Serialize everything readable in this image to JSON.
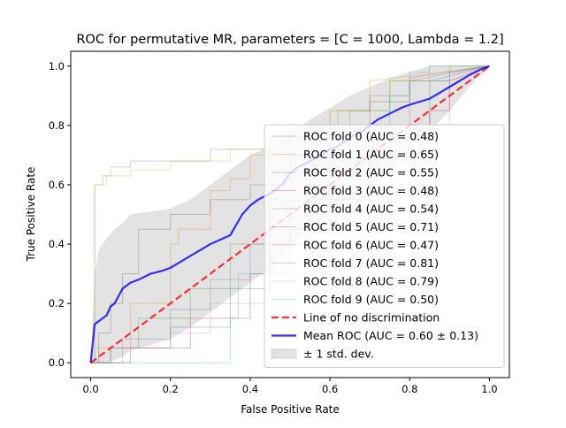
{
  "chart_data": {
    "type": "line",
    "title": "ROC for permutative MR, parameters = [C = 1000, Lambda = 1.2]",
    "xlabel": "False Positive Rate",
    "ylabel": "True Positive Rate",
    "xlim": [
      -0.05,
      1.05
    ],
    "ylim": [
      -0.05,
      1.05
    ],
    "xticks": [
      "0.0",
      "0.2",
      "0.4",
      "0.6",
      "0.8",
      "1.0"
    ],
    "yticks": [
      "0.0",
      "0.2",
      "0.4",
      "0.6",
      "0.8",
      "1.0"
    ],
    "grid": false,
    "legend_position": "lower right",
    "folds": [
      {
        "name": "ROC fold 0 (AUC = 0.48)",
        "color": "#1f77b4",
        "x": [
          0,
          0.05,
          0.05,
          0.2,
          0.2,
          0.35,
          0.35,
          0.45,
          0.45,
          0.55,
          0.55,
          0.7,
          0.7,
          0.85,
          0.85,
          1
        ],
        "y": [
          0,
          0,
          0.05,
          0.05,
          0.12,
          0.12,
          0.25,
          0.25,
          0.4,
          0.4,
          0.55,
          0.55,
          0.75,
          0.75,
          0.95,
          1
        ]
      },
      {
        "name": "ROC fold 1 (AUC = 0.65)",
        "color": "#ff7f0e",
        "x": [
          0,
          0.02,
          0.02,
          0.1,
          0.1,
          0.2,
          0.2,
          0.22,
          0.22,
          0.3,
          0.3,
          0.35,
          0.35,
          0.4,
          0.4,
          0.45,
          0.45,
          0.5,
          0.5,
          0.6,
          0.6,
          0.7,
          0.7,
          1
        ],
        "y": [
          0,
          0,
          0.05,
          0.05,
          0.2,
          0.2,
          0.4,
          0.4,
          0.45,
          0.45,
          0.58,
          0.58,
          0.62,
          0.62,
          0.7,
          0.7,
          0.75,
          0.75,
          0.8,
          0.8,
          0.85,
          0.85,
          0.95,
          1
        ]
      },
      {
        "name": "ROC fold 2 (AUC = 0.55)",
        "color": "#2ca02c",
        "x": [
          0,
          0.05,
          0.05,
          0.12,
          0.12,
          0.25,
          0.25,
          0.35,
          0.35,
          0.45,
          0.45,
          0.55,
          0.55,
          0.65,
          0.65,
          0.75,
          0.75,
          0.9,
          0.9,
          1
        ],
        "y": [
          0,
          0,
          0.05,
          0.05,
          0.15,
          0.15,
          0.25,
          0.25,
          0.4,
          0.4,
          0.55,
          0.55,
          0.7,
          0.7,
          0.85,
          0.85,
          0.95,
          0.95,
          1,
          1
        ]
      },
      {
        "name": "ROC fold 3 (AUC = 0.48)",
        "color": "#d62728",
        "x": [
          0,
          0.1,
          0.1,
          0.25,
          0.25,
          0.4,
          0.4,
          0.5,
          0.5,
          0.6,
          0.6,
          0.7,
          0.7,
          0.85,
          0.85,
          0.9,
          0.9,
          1
        ],
        "y": [
          0,
          0,
          0.05,
          0.05,
          0.15,
          0.15,
          0.3,
          0.3,
          0.45,
          0.45,
          0.55,
          0.55,
          0.7,
          0.7,
          0.85,
          0.85,
          0.95,
          1
        ]
      },
      {
        "name": "ROC fold 4 (AUC = 0.54)",
        "color": "#9467bd",
        "x": [
          0,
          0.08,
          0.08,
          0.2,
          0.2,
          0.3,
          0.3,
          0.4,
          0.4,
          0.5,
          0.5,
          0.6,
          0.6,
          0.7,
          0.7,
          0.8,
          0.8,
          1
        ],
        "y": [
          0,
          0,
          0.08,
          0.08,
          0.18,
          0.18,
          0.28,
          0.28,
          0.4,
          0.4,
          0.52,
          0.52,
          0.65,
          0.65,
          0.8,
          0.8,
          0.95,
          1
        ]
      },
      {
        "name": "ROC fold 5 (AUC = 0.71)",
        "color": "#8c564b",
        "x": [
          0,
          0.02,
          0.02,
          0.05,
          0.05,
          0.08,
          0.08,
          0.12,
          0.12,
          0.2,
          0.2,
          0.3,
          0.3,
          0.4,
          0.4,
          0.5,
          0.5,
          0.6,
          0.6,
          0.7,
          0.7,
          0.8,
          0.8,
          1
        ],
        "y": [
          0,
          0,
          0.1,
          0.1,
          0.2,
          0.2,
          0.3,
          0.3,
          0.45,
          0.45,
          0.5,
          0.5,
          0.55,
          0.55,
          0.6,
          0.6,
          0.7,
          0.7,
          0.78,
          0.78,
          0.88,
          0.88,
          0.96,
          1
        ]
      },
      {
        "name": "ROC fold 6 (AUC = 0.47)",
        "color": "#e377c2",
        "x": [
          0,
          0.05,
          0.05,
          0.2,
          0.2,
          0.3,
          0.3,
          0.45,
          0.45,
          0.55,
          0.55,
          0.7,
          0.7,
          0.8,
          0.8,
          0.9,
          0.9,
          1
        ],
        "y": [
          0,
          0,
          0.05,
          0.05,
          0.1,
          0.1,
          0.2,
          0.2,
          0.3,
          0.3,
          0.45,
          0.45,
          0.6,
          0.6,
          0.8,
          0.8,
          0.95,
          1
        ]
      },
      {
        "name": "ROC fold 7 (AUC = 0.81)",
        "color": "#7f7f7f",
        "x": [
          0,
          0.01,
          0.01,
          0.03,
          0.03,
          0.05,
          0.05,
          0.1,
          0.1,
          0.3,
          0.3,
          0.45,
          0.45,
          0.55,
          0.55,
          0.62,
          0.62,
          0.7,
          0.7,
          0.8,
          0.8,
          0.9,
          0.9,
          1
        ],
        "y": [
          0,
          0,
          0.6,
          0.6,
          0.63,
          0.63,
          0.66,
          0.66,
          0.68,
          0.68,
          0.72,
          0.72,
          0.76,
          0.76,
          0.8,
          0.8,
          0.85,
          0.85,
          0.9,
          0.9,
          0.95,
          0.95,
          0.98,
          1
        ]
      },
      {
        "name": "ROC fold 8 (AUC = 0.79)",
        "color": "#bcbd22",
        "x": [
          0,
          0.01,
          0.01,
          0.04,
          0.04,
          0.1,
          0.1,
          0.2,
          0.2,
          0.35,
          0.35,
          0.5,
          0.5,
          0.6,
          0.6,
          0.75,
          0.75,
          0.85,
          0.85,
          1
        ],
        "y": [
          0,
          0,
          0.6,
          0.6,
          0.63,
          0.63,
          0.65,
          0.65,
          0.68,
          0.68,
          0.72,
          0.72,
          0.78,
          0.78,
          0.85,
          0.85,
          0.95,
          0.95,
          1,
          1
        ]
      },
      {
        "name": "ROC fold 9 (AUC = 0.50)",
        "color": "#17becf",
        "x": [
          0,
          0.35,
          0.35,
          0.37,
          0.37,
          0.45,
          0.45,
          0.55,
          0.55,
          0.6,
          0.6,
          0.65,
          0.65,
          0.75,
          0.75,
          0.8,
          0.8,
          0.85,
          0.85,
          1
        ],
        "y": [
          0,
          0,
          0.15,
          0.15,
          0.3,
          0.3,
          0.45,
          0.45,
          0.6,
          0.6,
          0.7,
          0.7,
          0.8,
          0.8,
          0.9,
          0.9,
          0.98,
          0.98,
          1,
          1
        ]
      }
    ],
    "chance_line": {
      "name": "Line of no discrimination",
      "color": "#ff0000",
      "x": [
        0,
        1
      ],
      "y": [
        0,
        1
      ]
    },
    "mean_roc": {
      "name": "Mean ROC (AUC = 0.60 ± 0.13)",
      "color": "#0000ff",
      "x": [
        0,
        0.01,
        0.02,
        0.03,
        0.04,
        0.05,
        0.06,
        0.08,
        0.1,
        0.12,
        0.15,
        0.18,
        0.2,
        0.25,
        0.3,
        0.35,
        0.38,
        0.4,
        0.42,
        0.45,
        0.48,
        0.5,
        0.52,
        0.55,
        0.58,
        0.6,
        0.62,
        0.65,
        0.68,
        0.7,
        0.72,
        0.75,
        0.78,
        0.8,
        0.85,
        0.9,
        0.95,
        0.98,
        1
      ],
      "y": [
        0,
        0.13,
        0.14,
        0.15,
        0.16,
        0.19,
        0.2,
        0.25,
        0.27,
        0.28,
        0.3,
        0.31,
        0.32,
        0.36,
        0.4,
        0.43,
        0.5,
        0.53,
        0.55,
        0.57,
        0.6,
        0.64,
        0.66,
        0.68,
        0.7,
        0.72,
        0.73,
        0.76,
        0.78,
        0.8,
        0.82,
        0.84,
        0.86,
        0.87,
        0.89,
        0.93,
        0.97,
        0.99,
        1
      ]
    },
    "std_band": {
      "name": "± 1 std. dev.",
      "color": "#bdbdbd",
      "x": [
        0,
        0.01,
        0.02,
        0.04,
        0.06,
        0.08,
        0.1,
        0.15,
        0.2,
        0.25,
        0.3,
        0.35,
        0.4,
        0.45,
        0.5,
        0.55,
        0.6,
        0.65,
        0.7,
        0.75,
        0.8,
        0.85,
        0.9,
        0.95,
        1
      ],
      "upper": [
        0,
        0.3,
        0.38,
        0.42,
        0.45,
        0.47,
        0.5,
        0.51,
        0.52,
        0.55,
        0.6,
        0.65,
        0.7,
        0.73,
        0.77,
        0.82,
        0.86,
        0.9,
        0.93,
        0.96,
        0.98,
        1,
        1,
        1,
        1
      ],
      "lower": [
        0,
        0,
        0,
        0,
        0.01,
        0.02,
        0.04,
        0.06,
        0.08,
        0.12,
        0.17,
        0.22,
        0.27,
        0.32,
        0.38,
        0.45,
        0.5,
        0.55,
        0.6,
        0.66,
        0.72,
        0.78,
        0.85,
        0.93,
        1
      ]
    }
  }
}
